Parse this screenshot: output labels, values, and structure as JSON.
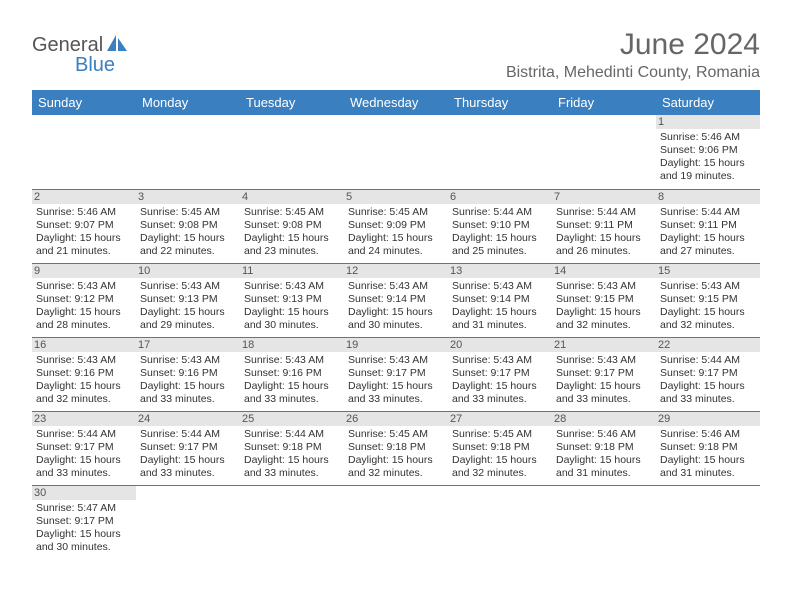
{
  "logo": {
    "part1": "General",
    "part2": "Blue"
  },
  "title": "June 2024",
  "location": "Bistrita, Mehedinti County, Romania",
  "headers": [
    "Sunday",
    "Monday",
    "Tuesday",
    "Wednesday",
    "Thursday",
    "Friday",
    "Saturday"
  ],
  "colors": {
    "header_bg": "#3a7fc0",
    "header_fg": "#ffffff",
    "daynum_bg": "#e5e5e5",
    "border": "#3a7fc0",
    "title_color": "#666666",
    "logo_blue": "#3a7fc0",
    "logo_gray": "#555555"
  },
  "weeks": [
    [
      {
        "n": "",
        "sr": "",
        "ss": "",
        "dl": ""
      },
      {
        "n": "",
        "sr": "",
        "ss": "",
        "dl": ""
      },
      {
        "n": "",
        "sr": "",
        "ss": "",
        "dl": ""
      },
      {
        "n": "",
        "sr": "",
        "ss": "",
        "dl": ""
      },
      {
        "n": "",
        "sr": "",
        "ss": "",
        "dl": ""
      },
      {
        "n": "",
        "sr": "",
        "ss": "",
        "dl": ""
      },
      {
        "n": "1",
        "sr": "Sunrise: 5:46 AM",
        "ss": "Sunset: 9:06 PM",
        "dl": "Daylight: 15 hours and 19 minutes."
      }
    ],
    [
      {
        "n": "2",
        "sr": "Sunrise: 5:46 AM",
        "ss": "Sunset: 9:07 PM",
        "dl": "Daylight: 15 hours and 21 minutes."
      },
      {
        "n": "3",
        "sr": "Sunrise: 5:45 AM",
        "ss": "Sunset: 9:08 PM",
        "dl": "Daylight: 15 hours and 22 minutes."
      },
      {
        "n": "4",
        "sr": "Sunrise: 5:45 AM",
        "ss": "Sunset: 9:08 PM",
        "dl": "Daylight: 15 hours and 23 minutes."
      },
      {
        "n": "5",
        "sr": "Sunrise: 5:45 AM",
        "ss": "Sunset: 9:09 PM",
        "dl": "Daylight: 15 hours and 24 minutes."
      },
      {
        "n": "6",
        "sr": "Sunrise: 5:44 AM",
        "ss": "Sunset: 9:10 PM",
        "dl": "Daylight: 15 hours and 25 minutes."
      },
      {
        "n": "7",
        "sr": "Sunrise: 5:44 AM",
        "ss": "Sunset: 9:11 PM",
        "dl": "Daylight: 15 hours and 26 minutes."
      },
      {
        "n": "8",
        "sr": "Sunrise: 5:44 AM",
        "ss": "Sunset: 9:11 PM",
        "dl": "Daylight: 15 hours and 27 minutes."
      }
    ],
    [
      {
        "n": "9",
        "sr": "Sunrise: 5:43 AM",
        "ss": "Sunset: 9:12 PM",
        "dl": "Daylight: 15 hours and 28 minutes."
      },
      {
        "n": "10",
        "sr": "Sunrise: 5:43 AM",
        "ss": "Sunset: 9:13 PM",
        "dl": "Daylight: 15 hours and 29 minutes."
      },
      {
        "n": "11",
        "sr": "Sunrise: 5:43 AM",
        "ss": "Sunset: 9:13 PM",
        "dl": "Daylight: 15 hours and 30 minutes."
      },
      {
        "n": "12",
        "sr": "Sunrise: 5:43 AM",
        "ss": "Sunset: 9:14 PM",
        "dl": "Daylight: 15 hours and 30 minutes."
      },
      {
        "n": "13",
        "sr": "Sunrise: 5:43 AM",
        "ss": "Sunset: 9:14 PM",
        "dl": "Daylight: 15 hours and 31 minutes."
      },
      {
        "n": "14",
        "sr": "Sunrise: 5:43 AM",
        "ss": "Sunset: 9:15 PM",
        "dl": "Daylight: 15 hours and 32 minutes."
      },
      {
        "n": "15",
        "sr": "Sunrise: 5:43 AM",
        "ss": "Sunset: 9:15 PM",
        "dl": "Daylight: 15 hours and 32 minutes."
      }
    ],
    [
      {
        "n": "16",
        "sr": "Sunrise: 5:43 AM",
        "ss": "Sunset: 9:16 PM",
        "dl": "Daylight: 15 hours and 32 minutes."
      },
      {
        "n": "17",
        "sr": "Sunrise: 5:43 AM",
        "ss": "Sunset: 9:16 PM",
        "dl": "Daylight: 15 hours and 33 minutes."
      },
      {
        "n": "18",
        "sr": "Sunrise: 5:43 AM",
        "ss": "Sunset: 9:16 PM",
        "dl": "Daylight: 15 hours and 33 minutes."
      },
      {
        "n": "19",
        "sr": "Sunrise: 5:43 AM",
        "ss": "Sunset: 9:17 PM",
        "dl": "Daylight: 15 hours and 33 minutes."
      },
      {
        "n": "20",
        "sr": "Sunrise: 5:43 AM",
        "ss": "Sunset: 9:17 PM",
        "dl": "Daylight: 15 hours and 33 minutes."
      },
      {
        "n": "21",
        "sr": "Sunrise: 5:43 AM",
        "ss": "Sunset: 9:17 PM",
        "dl": "Daylight: 15 hours and 33 minutes."
      },
      {
        "n": "22",
        "sr": "Sunrise: 5:44 AM",
        "ss": "Sunset: 9:17 PM",
        "dl": "Daylight: 15 hours and 33 minutes."
      }
    ],
    [
      {
        "n": "23",
        "sr": "Sunrise: 5:44 AM",
        "ss": "Sunset: 9:17 PM",
        "dl": "Daylight: 15 hours and 33 minutes."
      },
      {
        "n": "24",
        "sr": "Sunrise: 5:44 AM",
        "ss": "Sunset: 9:17 PM",
        "dl": "Daylight: 15 hours and 33 minutes."
      },
      {
        "n": "25",
        "sr": "Sunrise: 5:44 AM",
        "ss": "Sunset: 9:18 PM",
        "dl": "Daylight: 15 hours and 33 minutes."
      },
      {
        "n": "26",
        "sr": "Sunrise: 5:45 AM",
        "ss": "Sunset: 9:18 PM",
        "dl": "Daylight: 15 hours and 32 minutes."
      },
      {
        "n": "27",
        "sr": "Sunrise: 5:45 AM",
        "ss": "Sunset: 9:18 PM",
        "dl": "Daylight: 15 hours and 32 minutes."
      },
      {
        "n": "28",
        "sr": "Sunrise: 5:46 AM",
        "ss": "Sunset: 9:18 PM",
        "dl": "Daylight: 15 hours and 31 minutes."
      },
      {
        "n": "29",
        "sr": "Sunrise: 5:46 AM",
        "ss": "Sunset: 9:18 PM",
        "dl": "Daylight: 15 hours and 31 minutes."
      }
    ],
    [
      {
        "n": "30",
        "sr": "Sunrise: 5:47 AM",
        "ss": "Sunset: 9:17 PM",
        "dl": "Daylight: 15 hours and 30 minutes."
      },
      {
        "n": "",
        "sr": "",
        "ss": "",
        "dl": ""
      },
      {
        "n": "",
        "sr": "",
        "ss": "",
        "dl": ""
      },
      {
        "n": "",
        "sr": "",
        "ss": "",
        "dl": ""
      },
      {
        "n": "",
        "sr": "",
        "ss": "",
        "dl": ""
      },
      {
        "n": "",
        "sr": "",
        "ss": "",
        "dl": ""
      },
      {
        "n": "",
        "sr": "",
        "ss": "",
        "dl": ""
      }
    ]
  ]
}
